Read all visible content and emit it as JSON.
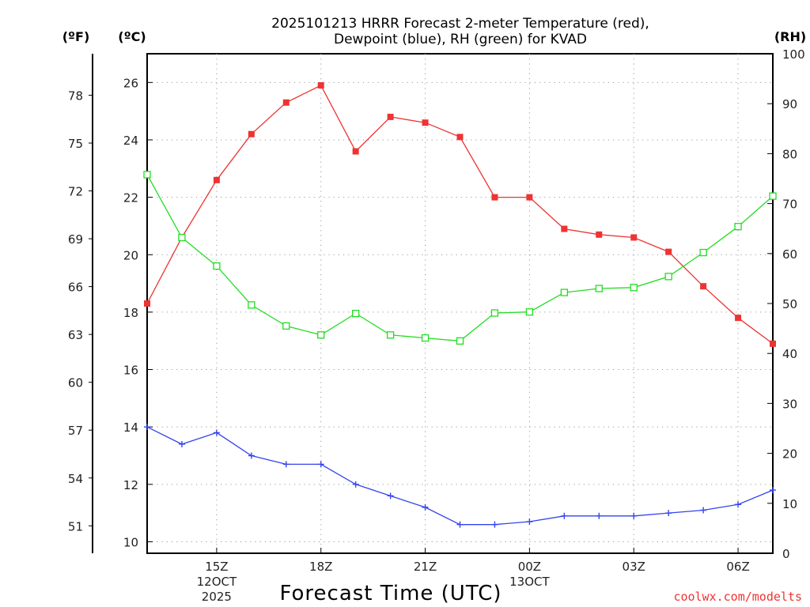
{
  "chart_data": {
    "type": "line",
    "title_lines": [
      "2025101213 HRRR Forecast 2-meter Temperature (red),",
      "Dewpoint (blue), RH (green) for KVAD"
    ],
    "xlabel": "Forecast Time (UTC)",
    "credit": "coolwx.com/modelts",
    "unit_labels": {
      "fahrenheit": "(ºF)",
      "celsius": "(ºC)",
      "rh": "(RH)"
    },
    "x_hours_range": [
      13,
      31
    ],
    "x_ticks": [
      {
        "hour": 15,
        "lines": [
          "15Z",
          "12OCT",
          "2025"
        ]
      },
      {
        "hour": 18,
        "lines": [
          "18Z"
        ]
      },
      {
        "hour": 21,
        "lines": [
          "21Z"
        ]
      },
      {
        "hour": 24,
        "lines": [
          "00Z",
          "13OCT"
        ]
      },
      {
        "hour": 27,
        "lines": [
          "03Z"
        ]
      },
      {
        "hour": 30,
        "lines": [
          "06Z"
        ]
      }
    ],
    "celsius_axis": {
      "range": [
        9.6,
        27.0
      ],
      "ticks": [
        "10",
        "12",
        "14",
        "16",
        "18",
        "20",
        "22",
        "24",
        "26"
      ]
    },
    "rh_axis": {
      "range": [
        0,
        100
      ],
      "ticks": [
        "0",
        "10",
        "20",
        "30",
        "40",
        "50",
        "60",
        "70",
        "80",
        "90",
        "100"
      ]
    },
    "fahrenheit_axis": {
      "ticks": [
        "51",
        "54",
        "57",
        "60",
        "63",
        "66",
        "69",
        "72",
        "75",
        "78"
      ]
    },
    "x_hours": [
      13,
      14,
      15,
      16,
      17,
      18,
      19,
      20,
      21,
      22,
      23,
      24,
      25,
      26,
      27,
      28,
      29,
      30,
      31
    ],
    "series": [
      {
        "name": "Temperature",
        "unit": "C",
        "color": "#ee3333",
        "marker": "filled-square",
        "values": [
          18.3,
          20.6,
          22.6,
          24.2,
          25.3,
          25.9,
          23.6,
          24.8,
          24.6,
          24.1,
          22.0,
          22.0,
          20.9,
          20.7,
          20.6,
          20.1,
          18.9,
          17.8,
          16.9
        ]
      },
      {
        "name": "Dewpoint",
        "unit": "C",
        "color": "#3344ee",
        "marker": "plus",
        "values": [
          14.0,
          13.4,
          13.8,
          13.0,
          12.7,
          12.7,
          12.0,
          11.6,
          11.2,
          10.6,
          10.6,
          10.7,
          10.9,
          10.9,
          10.9,
          11.0,
          11.1,
          11.3,
          11.8
        ]
      },
      {
        "name": "RH",
        "unit": "%",
        "color": "#22dd22",
        "marker": "open-square",
        "values": [
          75.8,
          63.2,
          57.5,
          49.7,
          45.5,
          43.7,
          48.0,
          43.7,
          43.1,
          42.5,
          48.1,
          48.3,
          52.2,
          53.0,
          53.2,
          55.4,
          60.2,
          65.4,
          71.5
        ]
      }
    ]
  }
}
